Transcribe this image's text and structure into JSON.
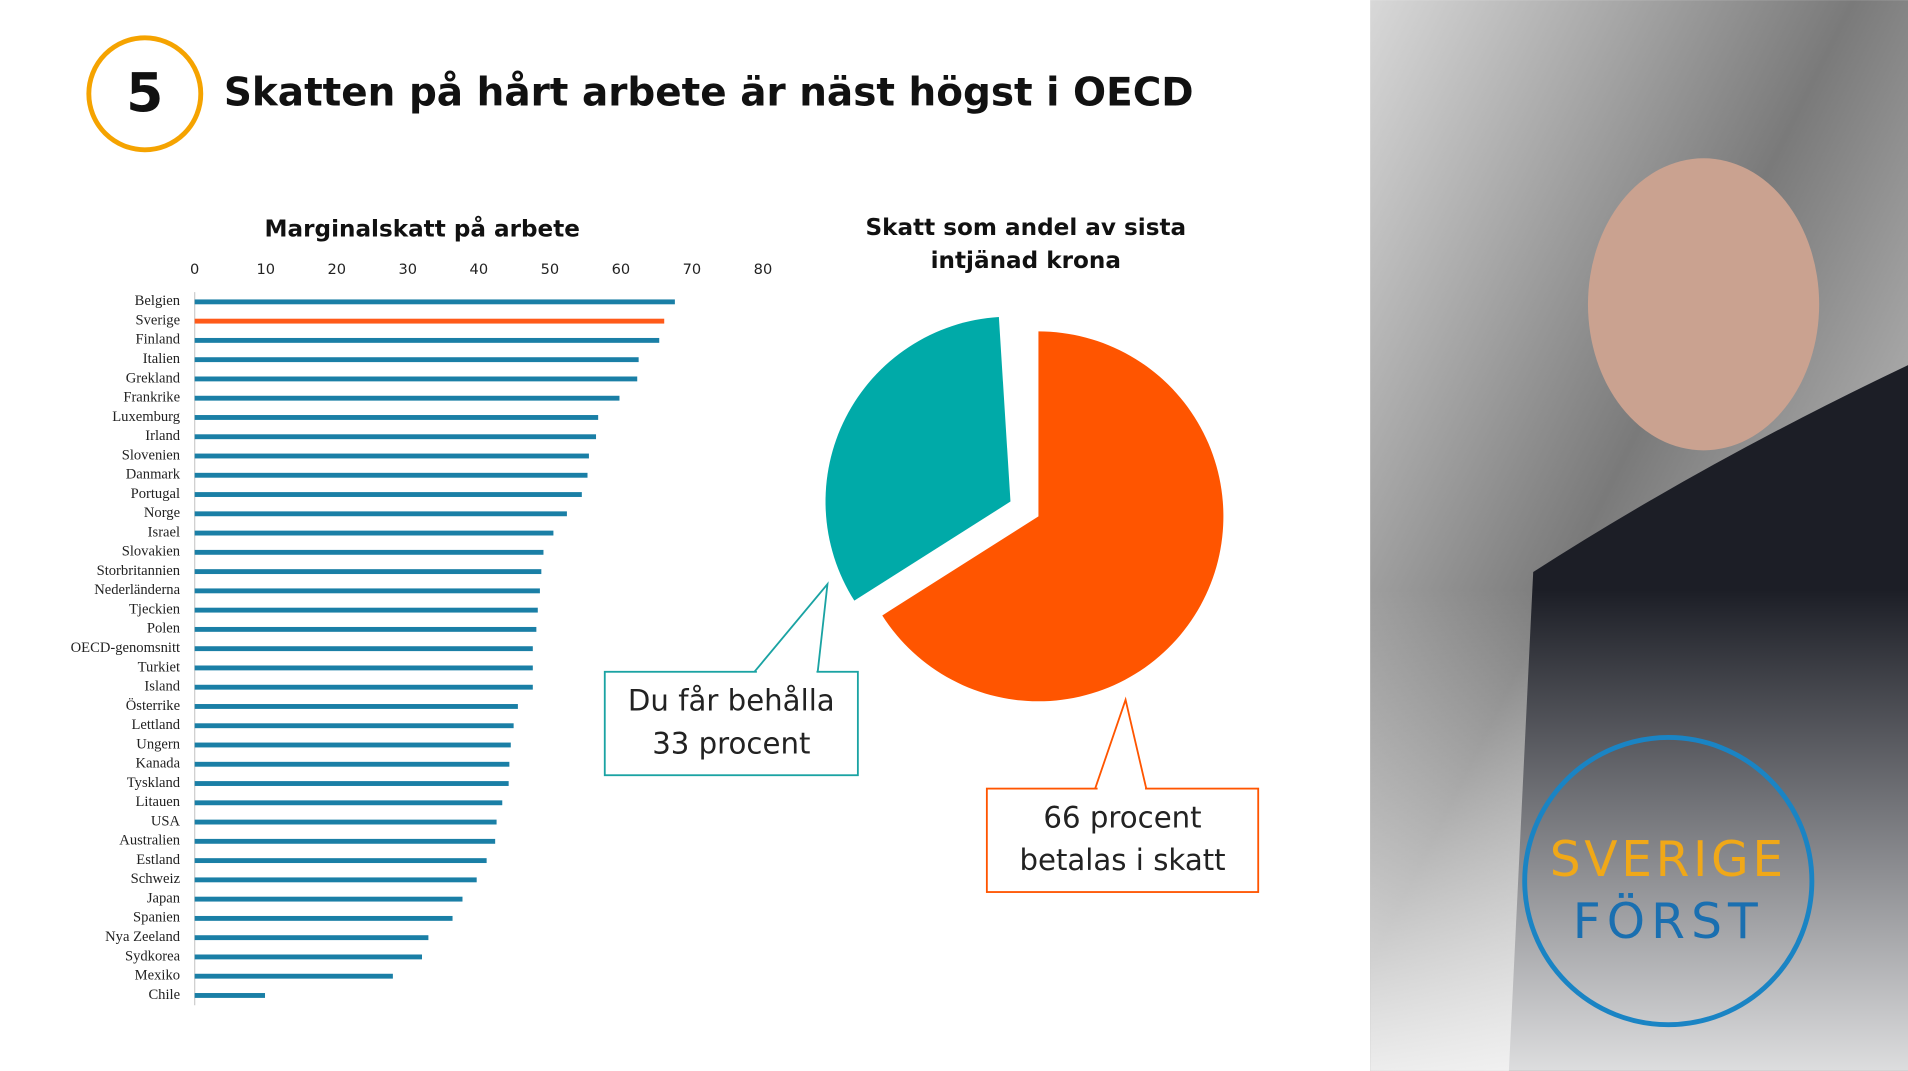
{
  "slide": {
    "number": "5",
    "title": "Skatten på hårt arbete är näst högst i OECD"
  },
  "logo": {
    "top": "SVERIGE",
    "bottom": "FÖRST"
  },
  "chart_data": [
    {
      "type": "barh",
      "title": "Marginalskatt på arbete",
      "categories": [
        "Belgien",
        "Sverige",
        "Finland",
        "Italien",
        "Grekland",
        "Frankrike",
        "Luxemburg",
        "Irland",
        "Slovenien",
        "Danmark",
        "Portugal",
        "Norge",
        "Israel",
        "Slovakien",
        "Storbritannien",
        "Nederländerna",
        "Tjeckien",
        "Polen",
        "OECD-genomsnitt",
        "Turkiet",
        "Island",
        "Österrike",
        "Lettland",
        "Ungern",
        "Kanada",
        "Tyskland",
        "Litauen",
        "USA",
        "Australien",
        "Estland",
        "Schweiz",
        "Japan",
        "Spanien",
        "Nya Zeeland",
        "Sydkorea",
        "Mexiko",
        "Chile"
      ],
      "values": [
        67.6,
        66.1,
        65.4,
        62.5,
        62.3,
        59.8,
        56.8,
        56.5,
        55.5,
        55.3,
        54.5,
        52.4,
        50.5,
        49.1,
        48.8,
        48.6,
        48.3,
        48.1,
        47.6,
        47.6,
        47.6,
        45.5,
        44.9,
        44.5,
        44.3,
        44.2,
        43.3,
        42.5,
        42.3,
        41.1,
        39.7,
        37.7,
        36.3,
        32.9,
        32.0,
        27.9,
        9.9
      ],
      "colors": [
        "#1a7fa6",
        "#ff5a1a",
        "#1a7fa6",
        "#1a7fa6",
        "#1a7fa6",
        "#1a7fa6",
        "#1a7fa6",
        "#1a7fa6",
        "#1a7fa6",
        "#1a7fa6",
        "#1a7fa6",
        "#1a7fa6",
        "#1a7fa6",
        "#1a7fa6",
        "#1a7fa6",
        "#1a7fa6",
        "#1a7fa6",
        "#1a7fa6",
        "#1a7fa6",
        "#1a7fa6",
        "#1a7fa6",
        "#1a7fa6",
        "#1a7fa6",
        "#1a7fa6",
        "#1a7fa6",
        "#1a7fa6",
        "#1a7fa6",
        "#1a7fa6",
        "#1a7fa6",
        "#1a7fa6",
        "#1a7fa6",
        "#1a7fa6",
        "#1a7fa6",
        "#1a7fa6",
        "#1a7fa6",
        "#1a7fa6",
        "#1a7fa6"
      ],
      "xlim": [
        0,
        80
      ],
      "xticks": [
        0,
        10,
        20,
        30,
        40,
        50,
        60,
        70,
        80
      ]
    },
    {
      "type": "pie",
      "title": "Skatt som andel av sista\nintjänad krona",
      "categories": [
        "Skatt",
        "Behålla"
      ],
      "values": [
        66,
        33
      ],
      "value_labels": [
        "66 procent\nbetalas i skatt",
        "Du får behålla\n33 procent"
      ],
      "colors": [
        "#ff5500",
        "#00aaa8"
      ]
    }
  ]
}
